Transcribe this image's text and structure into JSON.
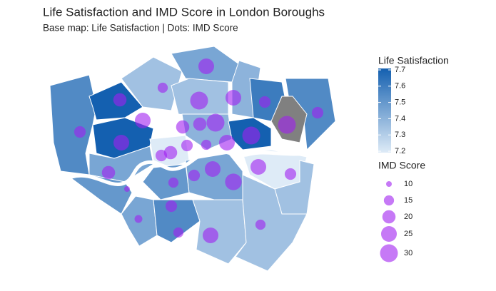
{
  "chart_data": {
    "type": "map",
    "title": "Life Satisfaction and IMD Score in London Boroughs",
    "subtitle": "Base map: Life Satisfaction | Dots: IMD Score",
    "color_legend": {
      "title": "Life Satisfaction",
      "lim": [
        7.2,
        7.7
      ],
      "ticks": [
        7.2,
        7.3,
        7.4,
        7.5,
        7.6,
        7.7
      ],
      "low_color": "#deebf7",
      "high_color": "#1460b0"
    },
    "na_color": "#808080",
    "size_legend": {
      "title": "IMD Score",
      "values": [
        10,
        15,
        20,
        25,
        30
      ]
    },
    "dot_color": "#a020f0",
    "regions": {
      "values": [
        7.55,
        7.7,
        7.35,
        7.45,
        7.4,
        7.6,
        7.55,
        null,
        7.7,
        7.35,
        7.45,
        7.2,
        7.4,
        7.7,
        7.2,
        7.35,
        7.5,
        7.45,
        7.5,
        7.55,
        7.45,
        7.35,
        7.35
      ]
    },
    "dots": {
      "values": [
        25,
        15,
        20,
        30,
        25,
        17,
        17,
        17,
        25,
        20,
        20,
        30,
        25,
        17,
        20,
        17,
        15,
        25,
        30,
        30,
        20,
        17,
        25,
        25,
        17,
        15,
        27,
        17,
        12,
        15,
        15,
        25,
        10
      ]
    }
  }
}
